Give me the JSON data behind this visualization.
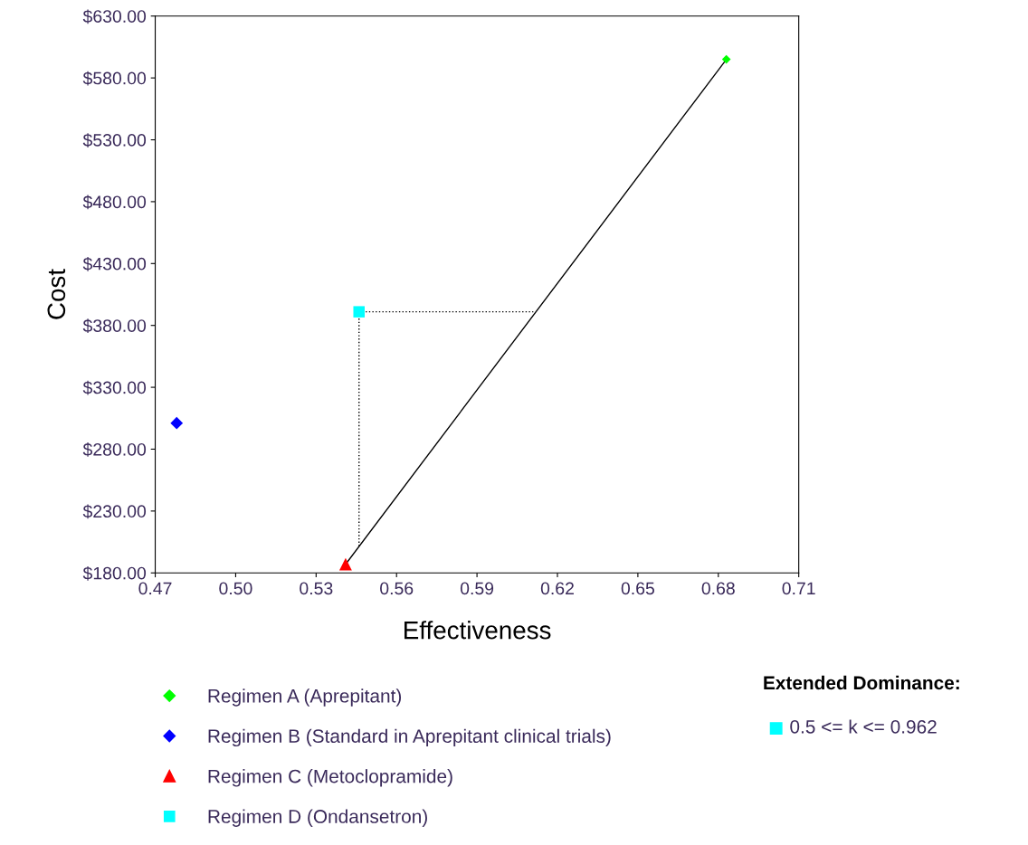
{
  "chart_data": {
    "type": "scatter",
    "xlabel": "Effectiveness",
    "ylabel": "Cost",
    "xlim": [
      0.47,
      0.71
    ],
    "ylim": [
      180,
      630
    ],
    "xticks": [
      0.47,
      {
        "value": 0.5,
        "label": "0.50"
      },
      0.53,
      0.56,
      0.59,
      0.62,
      0.65,
      0.68,
      0.71
    ],
    "yticks": [
      {
        "value": 180,
        "label": "$180.00"
      },
      {
        "value": 230,
        "label": "$230.00"
      },
      {
        "value": 280,
        "label": "$280.00"
      },
      {
        "value": 330,
        "label": "$330.00"
      },
      {
        "value": 380,
        "label": "$380.00"
      },
      {
        "value": 430,
        "label": "$430.00"
      },
      {
        "value": 480,
        "label": "$480.00"
      },
      {
        "value": 530,
        "label": "$530.00"
      },
      {
        "value": 580,
        "label": "$580.00"
      },
      {
        "value": 630,
        "label": "$630.00"
      }
    ],
    "grid": false,
    "legend": "bottom left",
    "series": [
      {
        "type": "line",
        "color": "#000000",
        "line_style": "solid",
        "marker": "none",
        "x": [
          0.541,
          0.683
        ],
        "values": [
          187,
          595
        ]
      },
      {
        "type": "line",
        "color": "#000000",
        "line_style": "dotted",
        "marker": "none",
        "x": [
          0.546,
          0.611
        ],
        "values": [
          391,
          391
        ]
      },
      {
        "type": "line",
        "color": "#000000",
        "line_style": "dotted",
        "marker": "none",
        "x": [
          0.546,
          0.546
        ],
        "values": [
          391,
          201
        ]
      },
      {
        "name": "Regimen A (Aprepitant)",
        "color": "#00ff00",
        "marker": "diamond",
        "x": [
          0.683
        ],
        "values": [
          595
        ]
      },
      {
        "name": "Regimen B (Standard in Aprepitant clinical trials)",
        "color": "#0000ff",
        "marker": "diamond",
        "x": [
          0.478
        ],
        "values": [
          301
        ]
      },
      {
        "name": "Regimen C (Metoclopramide)",
        "color": "#ff0000",
        "marker": "triangle",
        "x": [
          0.541
        ],
        "values": [
          187
        ]
      },
      {
        "name": "Regimen D (Ondansetron)",
        "color": "#00ffff",
        "marker": "square",
        "x": [
          0.546
        ],
        "values": [
          391
        ]
      }
    ],
    "annotations": [
      "Extended Dominance:",
      "0.5 <= k <= 0.962"
    ]
  }
}
